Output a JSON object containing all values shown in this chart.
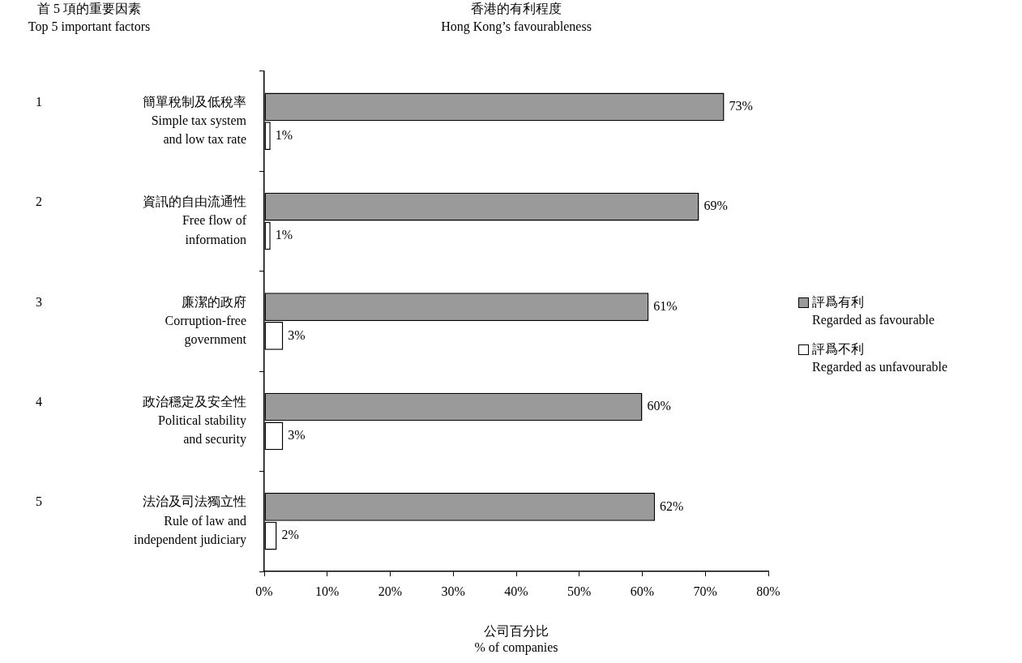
{
  "chart_data": {
    "type": "bar",
    "orientation": "horizontal",
    "title": "香港的有利程度\nHong Kong’s favourableness",
    "ylabel": "首 5 項的重要因素\nTop 5 important factors",
    "xlabel": "公司百分比\n% of companies",
    "categories": [
      "簡單稅制及低稅率\nSimple tax system\nand low tax rate",
      "資訊的自由流通性\nFree flow of\ninformation",
      "廉潔的政府\nCorruption-free\ngovernment",
      "政治穩定及安全性\nPolitical stability\nand security",
      "法治及司法獨立性\nRule of law and\nindependent judiciary"
    ],
    "series": [
      {
        "name": "評爲有利\nRegarded as favourable",
        "color": "#9a9a9a",
        "values": [
          73,
          69,
          61,
          60,
          62
        ],
        "value_labels": [
          "73%",
          "69%",
          "61%",
          "60%",
          "62%"
        ]
      },
      {
        "name": "評爲不利\nRegarded as unfavourable",
        "color": "#ffffff",
        "values": [
          1,
          1,
          3,
          3,
          2
        ],
        "value_labels": [
          "1%",
          "1%",
          "3%",
          "3%",
          "2%"
        ]
      }
    ],
    "xlim": [
      0,
      80
    ],
    "xticks": [
      {
        "value": 0,
        "label": "0%"
      },
      {
        "value": 10,
        "label": "10%"
      },
      {
        "value": 20,
        "label": "20%"
      },
      {
        "value": 30,
        "label": "30%"
      },
      {
        "value": 40,
        "label": "40%"
      },
      {
        "value": 50,
        "label": "50%"
      },
      {
        "value": 60,
        "label": "60%"
      },
      {
        "value": 70,
        "label": "70%"
      },
      {
        "value": 80,
        "label": "80%"
      }
    ],
    "annotations": [
      "1",
      "2",
      "3",
      "4",
      "5"
    ],
    "grid": false,
    "legend": "right"
  }
}
